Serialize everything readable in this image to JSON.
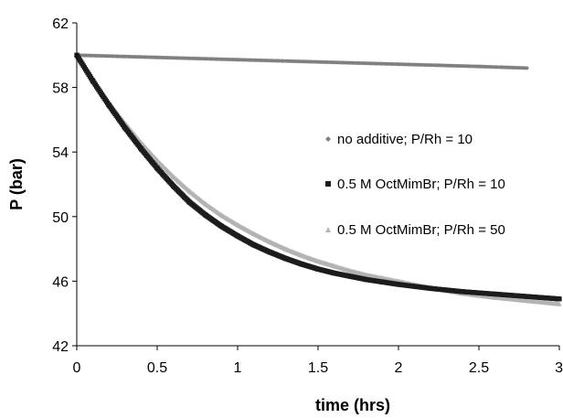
{
  "chart_data": {
    "type": "scatter",
    "title": "",
    "xlabel": "time (hrs)",
    "ylabel": "P (bar)",
    "xlim": [
      0,
      3
    ],
    "ylim": [
      42,
      62
    ],
    "x_ticks": [
      0,
      0.5,
      1,
      1.5,
      2,
      2.5,
      3
    ],
    "x_tick_labels": [
      "0",
      "0.5",
      "1",
      "1.5",
      "2",
      "2.5",
      "3"
    ],
    "y_ticks": [
      42,
      46,
      50,
      54,
      58,
      62
    ],
    "y_tick_labels": [
      "42",
      "46",
      "50",
      "54",
      "58",
      "62"
    ],
    "grid": false,
    "legend_position": "right, inside plot",
    "series": [
      {
        "name": "no additive; P/Rh = 10",
        "marker": "diamond",
        "color": "#808080",
        "x": [
          0,
          0.25,
          0.5,
          0.75,
          1.0,
          1.25,
          1.5,
          1.75,
          2.0,
          2.25,
          2.5,
          2.8
        ],
        "y": [
          60.0,
          59.93,
          59.86,
          59.79,
          59.72,
          59.65,
          59.58,
          59.51,
          59.44,
          59.37,
          59.3,
          59.2
        ]
      },
      {
        "name": "0.5 M OctMimBr; P/Rh = 10",
        "marker": "square",
        "color": "#1c1c1c",
        "x": [
          0,
          0.1,
          0.2,
          0.3,
          0.4,
          0.5,
          0.6,
          0.7,
          0.8,
          0.9,
          1.0,
          1.1,
          1.2,
          1.3,
          1.4,
          1.5,
          1.6,
          1.7,
          1.8,
          1.9,
          2.0,
          2.2,
          2.4,
          2.6,
          2.8,
          3.0
        ],
        "y": [
          60.0,
          58.4,
          56.9,
          55.5,
          54.2,
          53.0,
          51.9,
          50.9,
          50.1,
          49.4,
          48.8,
          48.25,
          47.8,
          47.4,
          47.05,
          46.75,
          46.5,
          46.3,
          46.1,
          45.95,
          45.8,
          45.55,
          45.35,
          45.2,
          45.05,
          44.9
        ]
      },
      {
        "name": "0.5 M OctMimBr; P/Rh = 50",
        "marker": "triangle",
        "color": "#b3b3b3",
        "x": [
          0,
          0.1,
          0.2,
          0.3,
          0.4,
          0.5,
          0.6,
          0.7,
          0.8,
          0.9,
          1.0,
          1.1,
          1.2,
          1.3,
          1.4,
          1.5,
          1.6,
          1.7,
          1.8,
          1.9,
          2.0,
          2.2,
          2.4,
          2.6,
          2.8,
          3.0
        ],
        "y": [
          60.0,
          58.5,
          57.1,
          55.8,
          54.6,
          53.5,
          52.5,
          51.6,
          50.8,
          50.1,
          49.5,
          48.95,
          48.45,
          48.0,
          47.6,
          47.25,
          46.95,
          46.65,
          46.4,
          46.2,
          46.0,
          45.6,
          45.25,
          45.0,
          44.8,
          44.6
        ]
      }
    ]
  }
}
